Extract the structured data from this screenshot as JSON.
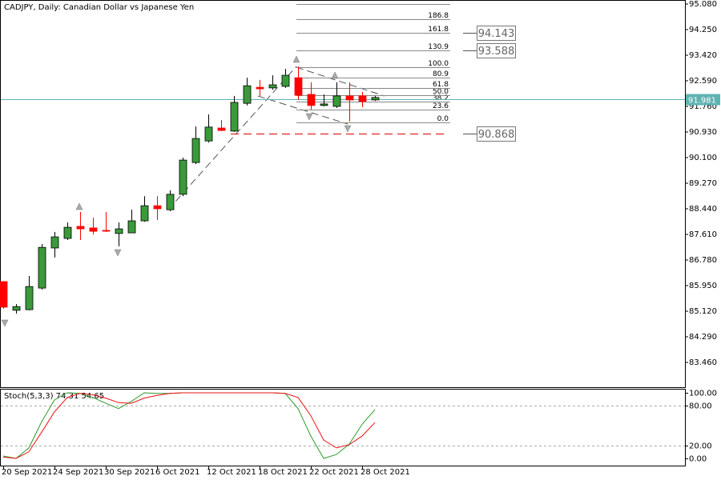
{
  "chart_data": [
    {
      "type": "candlestick",
      "title": "CADJPY, Daily:  Canadian Dollar vs Japanese Yen",
      "categories": [
        "20 Sep 2021",
        null,
        null,
        null,
        "24 Sep 2021",
        null,
        null,
        null,
        "30 Sep 2021",
        null,
        null,
        null,
        "6 Oct 2021",
        null,
        null,
        null,
        "12 Oct 2021",
        null,
        null,
        null,
        "18 Oct 2021",
        null,
        null,
        null,
        "22 Oct 2021",
        null,
        null,
        null,
        "28 Oct 2021",
        null
      ],
      "open": [
        86.08,
        85.15,
        85.17,
        85.87,
        87.17,
        87.48,
        87.87,
        87.82,
        87.74,
        87.64,
        87.66,
        88.05,
        88.54,
        88.41,
        88.91,
        89.94,
        90.64,
        91.06,
        90.96,
        91.86,
        92.38,
        92.36,
        92.41,
        92.69,
        92.15,
        91.79,
        91.76,
        92.1,
        92.1,
        91.97
      ],
      "high": [
        86.1,
        85.35,
        86.26,
        87.3,
        87.69,
        88.0,
        88.34,
        88.15,
        88.34,
        88.0,
        88.41,
        88.85,
        88.85,
        89.04,
        90.1,
        91.11,
        91.5,
        91.32,
        92.1,
        92.69,
        92.62,
        92.77,
        92.98,
        93.06,
        92.54,
        92.15,
        92.54,
        92.54,
        92.23,
        92.1
      ],
      "low": [
        85.2,
        85.04,
        85.15,
        85.82,
        86.86,
        87.43,
        87.43,
        87.61,
        87.69,
        87.22,
        87.66,
        88.02,
        88.08,
        88.36,
        88.85,
        89.89,
        90.59,
        90.96,
        90.93,
        91.79,
        92.1,
        92.3,
        92.36,
        91.97,
        91.66,
        91.76,
        91.71,
        91.27,
        91.73,
        91.94
      ],
      "close": [
        85.25,
        85.27,
        85.92,
        87.19,
        87.53,
        87.84,
        87.79,
        87.71,
        87.72,
        87.79,
        88.05,
        88.54,
        88.44,
        88.91,
        90.02,
        90.72,
        91.09,
        90.98,
        91.89,
        92.43,
        92.33,
        92.46,
        92.77,
        92.12,
        91.79,
        91.84,
        92.1,
        91.97,
        91.92,
        92.05
      ],
      "up_color": "#3a9a3a",
      "down_color": "#ff0000",
      "ylim": [
        82.63,
        95.21
      ],
      "yticks": [
        {
          "value": 95.08,
          "label": "95.080"
        },
        {
          "value": 94.25,
          "label": "94.250"
        },
        {
          "value": 93.42,
          "label": "93.420"
        },
        {
          "value": 92.59,
          "label": "92.590"
        },
        {
          "value": 91.76,
          "label": "91.760"
        },
        {
          "value": 90.93,
          "label": "90.930"
        },
        {
          "value": 90.1,
          "label": "90.100"
        },
        {
          "value": 89.27,
          "label": "89.270"
        },
        {
          "value": 88.44,
          "label": "88.440"
        },
        {
          "value": 87.61,
          "label": "87.610"
        },
        {
          "value": 86.78,
          "label": "86.780"
        },
        {
          "value": 85.95,
          "label": "85.950"
        },
        {
          "value": 85.12,
          "label": "85.120"
        },
        {
          "value": 84.29,
          "label": "84.290"
        },
        {
          "value": 83.46,
          "label": "83.460"
        }
      ],
      "current_price": 91.981,
      "current_price_color": "#5fb3b3",
      "fibonacci": {
        "point_0": 91.237,
        "point_100": 93.033,
        "color": "#888888",
        "levels": [
          {
            "value": 0,
            "label": "0.0"
          },
          23.6,
          38.2,
          {
            "value": 50,
            "label": "50.0"
          },
          61.8,
          80.9,
          {
            "value": 100,
            "label": "100.0"
          },
          130.9,
          161.8,
          186.8
        ]
      },
      "price_labels": [
        94.143,
        93.588,
        90.868
      ],
      "level_line_color": "#dd0000"
    },
    {
      "type": "line",
      "title": "Stoch(5,3,3)",
      "series": [
        {
          "color": "#2e9a2e",
          "values": [
            3.7,
            0,
            16,
            56,
            89,
            100,
            99,
            93,
            84,
            76,
            87,
            100,
            99,
            99,
            100,
            100,
            100,
            100,
            100,
            100,
            100,
            100,
            99,
            76,
            34,
            0,
            6,
            22,
            52,
            74.31
          ]
        },
        {
          "color": "#ee1111",
          "values": [
            2,
            0,
            10,
            40,
            71,
            93,
            99,
            97,
            92,
            85,
            84,
            92,
            96,
            99,
            100,
            100,
            100,
            100,
            100,
            100,
            100,
            100,
            99,
            93,
            65,
            28,
            16,
            21,
            34,
            54.65
          ]
        }
      ],
      "ylim": [
        -12.2,
        104.9
      ],
      "yticks": [
        {
          "value": 100,
          "label": "100.00"
        },
        {
          "value": 80,
          "label": "80.00"
        },
        {
          "value": 20,
          "label": "20.00"
        },
        {
          "value": 0,
          "label": "0.00"
        }
      ]
    }
  ]
}
